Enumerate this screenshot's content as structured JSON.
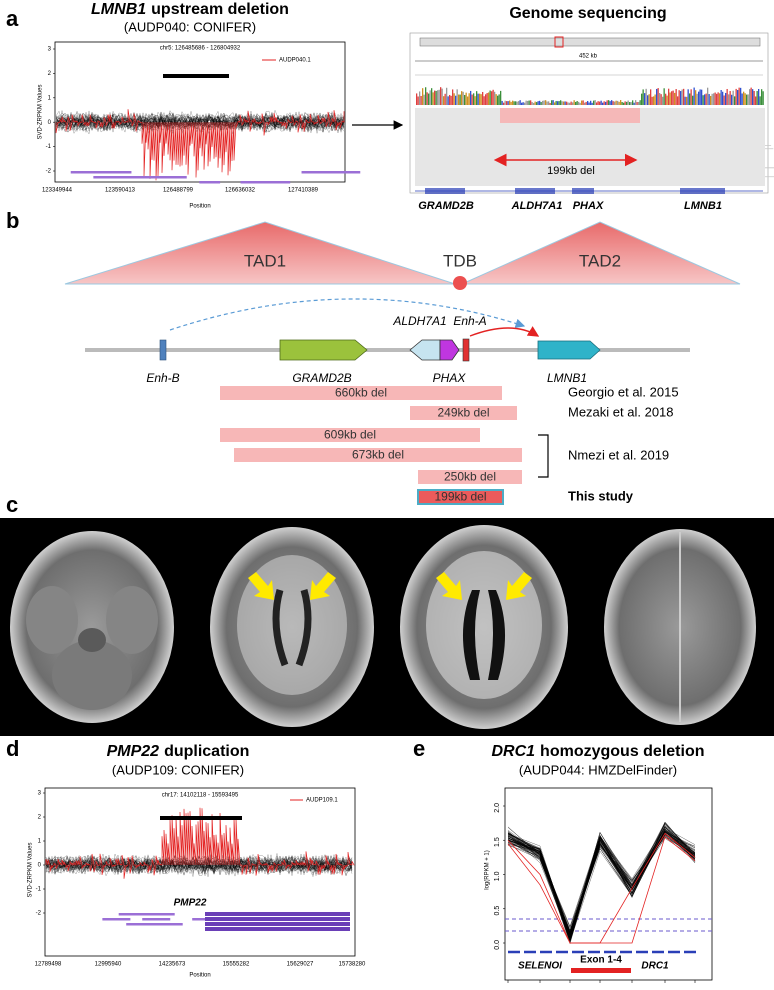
{
  "panel_a": {
    "label": "a",
    "title": {
      "gene": "LMNB1",
      "text": "upstream deletion"
    },
    "subtitle": "(AUDP040: CONIFER)",
    "plot": {
      "title": "chr5: 126485686 - 126804932",
      "legend": "AUDP040.1",
      "y_label": "SVD-ZRPKM Values",
      "x_label": "Position",
      "yticks": [
        "3",
        "2",
        "1",
        "0",
        "-1",
        "-2"
      ],
      "xticks": [
        "123349944",
        "123590413",
        "126488799",
        "126636032",
        "127410389"
      ]
    },
    "sequencing": {
      "title": "Genome sequencing",
      "span": "452 kb",
      "deletion": "199kb del",
      "genes": [
        "GRAMD2B",
        "ALDH7A1",
        "PHAX",
        "LMNB1"
      ]
    }
  },
  "panel_b": {
    "label": "b",
    "tads": [
      "TAD1",
      "TAD2"
    ],
    "boundary": "TDB",
    "elements": [
      "Enh-B",
      "GRAMD2B",
      "ALDH7A1",
      "PHAX",
      "Enh-A",
      "LMNB1"
    ],
    "deletions": [
      "660kb del",
      "249kb del",
      "609kb del",
      "673kb del",
      "250kb del",
      "199kb del"
    ],
    "studies": [
      "Georgio et al. 2015",
      "Mezaki et al. 2018",
      "Nmezi et al. 2019",
      "This study"
    ]
  },
  "panel_c": {
    "label": "c"
  },
  "panel_d": {
    "label": "d",
    "title": {
      "gene": "PMP22",
      "text": "duplication"
    },
    "subtitle": "(AUDP109: CONIFER)",
    "plot": {
      "title": "chr17: 14102118 - 15593495",
      "legend": "AUDP109.1",
      "y_label": "SVD-ZRPKM Values",
      "x_label": "Position",
      "gene": "PMP22",
      "yticks": [
        "3",
        "2",
        "1",
        "0",
        "-1",
        "-2"
      ],
      "xticks": [
        "12789498",
        "12995940",
        "14235673",
        "15555282",
        "15629027",
        "15738280"
      ]
    }
  },
  "panel_e": {
    "label": "e",
    "title": {
      "gene": "DRC1",
      "text": "homozygous deletion"
    },
    "subtitle": "(AUDP044: HMZDelFinder)",
    "plot": {
      "y_label": "log(RPKM + 1)",
      "yticks": [
        "0.0",
        "0.5",
        "1.0",
        "1.5",
        "2.0"
      ],
      "genes": [
        "SELENOI",
        "DRC1"
      ],
      "exon": "Exon 1-4"
    }
  }
}
